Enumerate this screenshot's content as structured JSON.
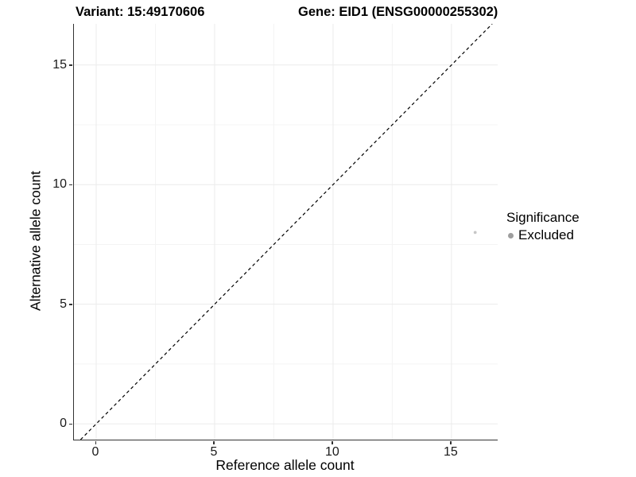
{
  "chart_data": {
    "type": "scatter",
    "title_left": "Variant: 15:49170606",
    "title_right": "Gene: EID1 (ENSG00000255302)",
    "xlabel": "Reference allele count",
    "ylabel": "Alternative allele count",
    "xlim": [
      -0.94,
      16.95
    ],
    "ylim": [
      -0.66,
      16.72
    ],
    "x_major_ticks": [
      0,
      5,
      10,
      15
    ],
    "y_major_ticks": [
      0,
      5,
      10,
      15
    ],
    "x_minor_ticks": [
      2.5,
      7.5,
      12.5
    ],
    "y_minor_ticks": [
      2.5,
      7.5,
      12.5
    ],
    "grid": true,
    "reference_line": {
      "type": "identity",
      "style": "dashed",
      "color": "#000000"
    },
    "points": [
      {
        "x": 16,
        "y": 8,
        "series": "Excluded",
        "color": "#c6c6c6",
        "radius": 1.9
      }
    ],
    "legend": {
      "title": "Significance",
      "position": "right",
      "items": [
        {
          "label": "Excluded",
          "color": "#9e9e9e"
        }
      ]
    }
  },
  "colors": {
    "background": "#ffffff",
    "grid_major": "#ebebeb",
    "grid_minor": "#f4f4f4",
    "axis_line": "#333333",
    "tick_label": "#1a1a1a"
  }
}
